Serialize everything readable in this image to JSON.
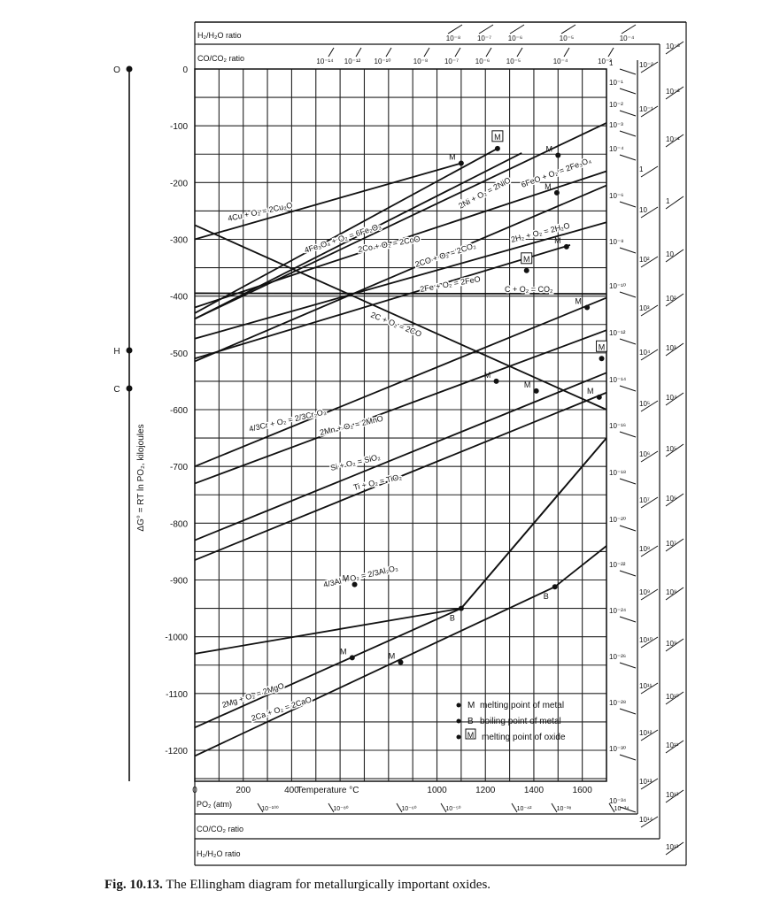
{
  "caption": {
    "figure_no": "Fig. 10.13.",
    "text": "The Ellingham diagram for metallurgically important oxides."
  },
  "chart_data": {
    "type": "line",
    "title": "",
    "xlabel": "Temperature °C",
    "ylabel": "ΔG° = RT ln PO₂, kilojoules",
    "xlim": [
      0,
      1700
    ],
    "ylim": [
      -1250,
      0
    ],
    "x_ticks": [
      0,
      200,
      400,
      1000,
      1200,
      1400,
      1600
    ],
    "y_ticks": [
      0,
      -100,
      -200,
      -300,
      -400,
      -500,
      -600,
      -700,
      -800,
      -900,
      -1000,
      -1100,
      -1200
    ],
    "grid": true,
    "series": [
      {
        "name": "4Cu + O₂ = 2Cu₂O",
        "points": [
          [
            0,
            -300
          ],
          [
            1100,
            -166
          ]
        ],
        "marks": [
          {
            "x": 1100,
            "y": -166,
            "type": "M"
          }
        ]
      },
      {
        "name": "2Ni + O₂ = 2NiO",
        "points": [
          [
            0,
            -440
          ],
          [
            1350,
            -148
          ]
        ]
      },
      {
        "name": "6FeO + O₂ = 2Fe₃O₄",
        "points": [
          [
            0,
            -440
          ],
          [
            1700,
            -95
          ]
        ],
        "marks": [
          {
            "x": 1500,
            "y": -152,
            "type": "M"
          }
        ]
      },
      {
        "name": "4Fe₃O₄ + O₂ = 6Fe₂O₃",
        "points": [
          [
            0,
            -430
          ],
          [
            1250,
            -140
          ]
        ],
        "marks": [
          {
            "x": 1250,
            "y": -140,
            "type": "M_oxide"
          }
        ]
      },
      {
        "name": "2Co + O₂ = 2CoO",
        "points": [
          [
            0,
            -420
          ],
          [
            1700,
            -180
          ]
        ],
        "marks": [
          {
            "x": 1495,
            "y": -218,
            "type": "M"
          }
        ]
      },
      {
        "name": "2CO + O₂ = 2CO₂",
        "points": [
          [
            0,
            -515
          ],
          [
            1700,
            -205
          ]
        ]
      },
      {
        "name": "2H₂ + O₂ = 2H₂O",
        "points": [
          [
            0,
            -475
          ],
          [
            1700,
            -270
          ]
        ]
      },
      {
        "name": "2Fe + O₂ = 2FeO",
        "points": [
          [
            0,
            -510
          ],
          [
            1550,
            -310
          ]
        ],
        "marks": [
          {
            "x": 1535,
            "y": -313,
            "type": "M"
          },
          {
            "x": 1370,
            "y": -355,
            "type": "M_oxide"
          }
        ]
      },
      {
        "name": "C + O₂ = CO₂",
        "points": [
          [
            0,
            -395
          ],
          [
            1700,
            -396
          ]
        ]
      },
      {
        "name": "2C + O₂ = 2CO",
        "points": [
          [
            0,
            -275
          ],
          [
            1700,
            -600
          ]
        ]
      },
      {
        "name": "4/3Cr + O₂ = 2/3Cr₂O₃",
        "points": [
          [
            0,
            -700
          ],
          [
            1700,
            -403
          ]
        ],
        "marks": [
          {
            "x": 1620,
            "y": -420,
            "type": "M"
          }
        ]
      },
      {
        "name": "2Mn + O₂ = 2MnO",
        "points": [
          [
            0,
            -730
          ],
          [
            1700,
            -460
          ]
        ],
        "marks": [
          {
            "x": 1245,
            "y": -550,
            "type": "M"
          }
        ]
      },
      {
        "name": "Si + O₂ = SiO₂",
        "points": [
          [
            0,
            -830
          ],
          [
            1700,
            -535
          ]
        ],
        "marks": [
          {
            "x": 1410,
            "y": -567,
            "type": "M"
          },
          {
            "x": 1680,
            "y": -510,
            "type": "M_oxide"
          }
        ]
      },
      {
        "name": "Ti + O₂ = TiO₂",
        "points": [
          [
            0,
            -865
          ],
          [
            1700,
            -570
          ]
        ],
        "marks": [
          {
            "x": 1670,
            "y": -578,
            "type": "M"
          }
        ]
      },
      {
        "name": "4/3Al + O₂ = 2/3Al₂O₃",
        "points": [
          [
            0,
            -1030
          ],
          [
            1100,
            -950
          ],
          [
            1700,
            -650
          ]
        ],
        "marks": [
          {
            "x": 660,
            "y": -908,
            "type": "M"
          },
          {
            "x": 1100,
            "y": -950,
            "type": "B"
          }
        ]
      },
      {
        "name": "2Mg + O₂ = 2MgO",
        "points": [
          [
            0,
            -1160
          ],
          [
            1100,
            -950
          ],
          [
            1700,
            -650
          ]
        ],
        "marks": [
          {
            "x": 650,
            "y": -1037,
            "type": "M"
          }
        ]
      },
      {
        "name": "2Ca + O₂ = 2CaO",
        "points": [
          [
            0,
            -1210
          ],
          [
            1487,
            -912
          ],
          [
            1700,
            -840
          ]
        ],
        "marks": [
          {
            "x": 850,
            "y": -1045,
            "type": "M"
          },
          {
            "x": 1487,
            "y": -912,
            "type": "B"
          }
        ]
      }
    ],
    "legend": [
      {
        "symbol": "M",
        "text": "melting point of metal"
      },
      {
        "symbol": "B",
        "text": "boiling point of metal"
      },
      {
        "symbol": "M",
        "text": "melting point of oxide"
      }
    ],
    "legend_position": "bottom-right",
    "left_scale": {
      "labels": [
        "O",
        "H",
        "C"
      ]
    },
    "top_scales": [
      {
        "label": "H₂/H₂O ratio",
        "ticks": [
          "10⁻⁸",
          "10⁻⁷",
          "10⁻⁶",
          "10⁻⁵",
          "10⁻⁴"
        ]
      },
      {
        "label": "CO/CO₂ ratio",
        "ticks": [
          "10⁻¹⁴",
          "10⁻¹²",
          "10⁻¹⁰",
          "10⁻⁸",
          "10⁻⁷",
          "10⁻⁶",
          "10⁻⁵",
          "10⁻⁴",
          "10⁻³"
        ]
      }
    ],
    "right_scales": {
      "po2": [
        "1",
        "10⁻¹",
        "10⁻²",
        "10⁻³",
        "10⁻⁴",
        "10⁻⁶",
        "10⁻⁸",
        "10⁻¹⁰",
        "10⁻¹²",
        "10⁻¹⁴",
        "10⁻¹⁶",
        "10⁻¹⁸",
        "10⁻²⁰",
        "10⁻²²",
        "10⁻²⁴",
        "10⁻²⁶",
        "10⁻²⁸",
        "10⁻³⁰",
        "10⁻³⁴"
      ],
      "co_co2": [
        "10⁻²",
        "10⁻¹",
        "1",
        "10",
        "10²",
        "10³",
        "10⁴",
        "10⁵",
        "10⁶",
        "10⁷",
        "10⁸",
        "10⁹",
        "10¹⁰",
        "10¹¹",
        "10¹²",
        "10¹³",
        "10¹⁴"
      ],
      "h2_h2o": [
        "10⁻³",
        "10⁻²",
        "10⁻¹",
        "1",
        "10",
        "10²",
        "10³",
        "10⁴",
        "10⁵",
        "10⁶",
        "10⁷",
        "10⁸",
        "10⁹",
        "10¹⁰",
        "10¹¹",
        "10¹²",
        "10¹³"
      ]
    },
    "bottom_scales": {
      "po2_label": "PO₂ (atm)",
      "po2_ticks": [
        "10⁻¹⁰⁰",
        "10⁻⁸⁰",
        "10⁻⁶⁰",
        "10⁻⁵⁰",
        "10⁻⁴²",
        "10⁻³⁸",
        "10⁻³⁴"
      ],
      "co_co2_label": "CO/CO₂ ratio",
      "h2_h2o_label": "H₂/H₂O ratio"
    }
  }
}
